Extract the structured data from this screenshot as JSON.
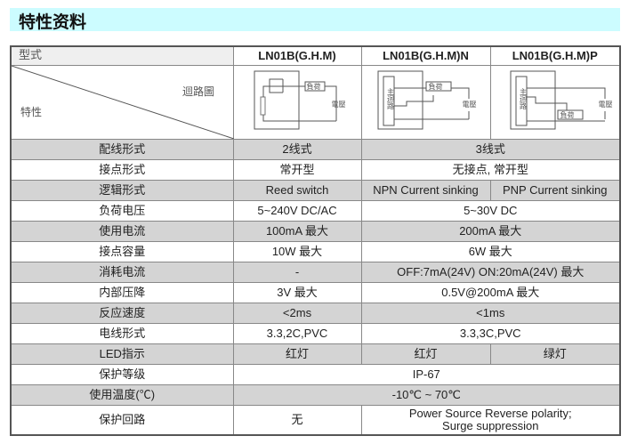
{
  "title": "特性资料",
  "header": {
    "type_label": "型式",
    "models": [
      "LN01B(G.H.M)",
      "LN01B(G.H.M)N",
      "LN01B(G.H.M)P"
    ]
  },
  "diagram_row": {
    "circuit_label": "迴路圖",
    "property_label": "特性",
    "diagram_text": {
      "load": "負荷",
      "voltage": "電壓",
      "main_circuit": "主迴路",
      "brown": "棕",
      "black": "黑",
      "blue": "藍",
      "plus": "+",
      "minus": "-"
    }
  },
  "rows": [
    {
      "label": "配线形式",
      "reed": "2线式",
      "shared": "3线式"
    },
    {
      "label": "接点形式",
      "reed": "常开型",
      "shared": "无接点, 常开型"
    },
    {
      "label": "逻辑形式",
      "reed": "Reed switch",
      "npn": "NPN Current sinking",
      "pnp": "PNP Current sinking"
    },
    {
      "label": "负荷电压",
      "reed": "5~240V DC/AC",
      "shared": "5~30V DC"
    },
    {
      "label": "使用电流",
      "reed": "100mA 最大",
      "shared": "200mA 最大"
    },
    {
      "label": "接点容量",
      "reed": "10W 最大",
      "shared": "6W 最大"
    },
    {
      "label": "消耗电流",
      "reed": "-",
      "shared": "OFF:7mA(24V) ON:20mA(24V) 最大"
    },
    {
      "label": "内部压降",
      "reed": "3V 最大",
      "shared": "0.5V@200mA 最大"
    },
    {
      "label": "反应速度",
      "reed": "<2ms",
      "shared": "<1ms"
    },
    {
      "label": "电线形式",
      "reed": "3.3,2C,PVC",
      "shared": "3.3,3C,PVC"
    },
    {
      "label": "LED指示",
      "reed": "红灯",
      "npn": "红灯",
      "pnp": "绿灯"
    },
    {
      "label": "保护等级",
      "all": "IP-67"
    },
    {
      "label": "使用温度(℃)",
      "all": "-10℃ ~ 70℃"
    },
    {
      "label": "保护回路",
      "reed": "无",
      "shared_line1": "Power Source Reverse polarity;",
      "shared_line2": "Surge suppression"
    }
  ]
}
